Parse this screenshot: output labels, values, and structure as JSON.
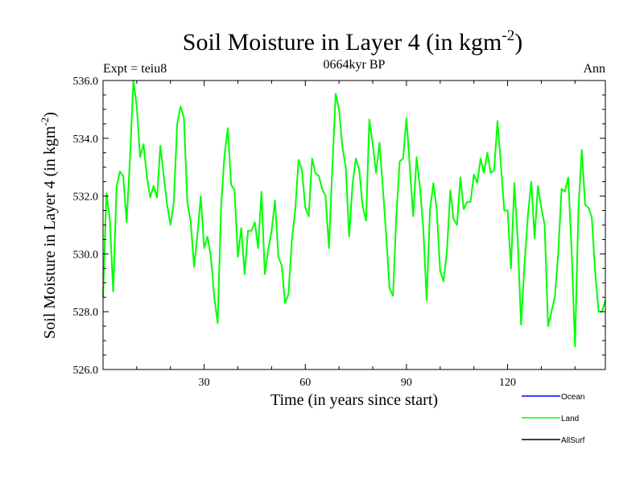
{
  "chart_data": {
    "type": "line",
    "title_main": "Soil Moisture in Layer 4 (in kgm",
    "title_exp": "-2",
    "title_close": ")",
    "subtitle_left": "Expt = teiu8",
    "subtitle_center": "0664kyr BP",
    "subtitle_right": "Ann",
    "xlabel": "Time (in years since start)",
    "ylabel_main": "Soil Moisture in Layer 4 (in kgm",
    "ylabel_exp": "-2",
    "ylabel_close": ")",
    "xlim": [
      0,
      149
    ],
    "ylim": [
      526.0,
      536.0
    ],
    "xticks": [
      30,
      60,
      90,
      120
    ],
    "yticks": [
      526,
      528,
      530,
      532,
      534,
      536
    ],
    "ytick_labels": [
      "526.0",
      "528.0",
      "530.0",
      "532.0",
      "534.0",
      "536.0"
    ],
    "legend": [
      {
        "name": "Ocean",
        "color": "#0000ff"
      },
      {
        "name": "Land",
        "color": "#00ff00"
      },
      {
        "name": "AllSurf",
        "color": "#000000"
      }
    ],
    "series": [
      {
        "name": "Land",
        "color": "#00ff00",
        "values": [
          528.5,
          532.1,
          531.2,
          528.7,
          532.3,
          532.85,
          532.7,
          531.1,
          533.3,
          536.0,
          535.1,
          533.35,
          533.8,
          532.7,
          531.95,
          532.35,
          531.95,
          533.75,
          532.7,
          531.7,
          531.0,
          531.8,
          534.5,
          535.1,
          534.7,
          531.8,
          531.1,
          529.55,
          530.7,
          532.0,
          530.2,
          530.6,
          529.9,
          528.5,
          527.6,
          531.6,
          533.4,
          534.35,
          532.4,
          532.2,
          529.9,
          530.9,
          529.3,
          530.8,
          530.8,
          531.1,
          530.2,
          532.15,
          529.3,
          530.15,
          530.8,
          531.85,
          529.9,
          529.6,
          528.3,
          528.6,
          530.45,
          531.5,
          533.25,
          532.9,
          531.6,
          531.3,
          533.3,
          532.8,
          532.7,
          532.25,
          532.0,
          530.2,
          532.95,
          535.55,
          535.0,
          533.7,
          533.0,
          530.6,
          532.4,
          533.3,
          532.9,
          531.65,
          531.15,
          534.65,
          533.8,
          532.8,
          533.85,
          532.3,
          530.6,
          528.8,
          528.55,
          531.3,
          533.2,
          533.3,
          534.7,
          533.0,
          531.3,
          533.35,
          532.3,
          530.85,
          528.4,
          531.55,
          532.45,
          531.5,
          529.4,
          529.05,
          530.1,
          532.2,
          531.2,
          531.0,
          532.65,
          531.55,
          531.8,
          531.8,
          532.75,
          532.45,
          533.3,
          532.8,
          533.5,
          532.8,
          532.9,
          534.6,
          533.1,
          531.5,
          531.5,
          529.5,
          532.45,
          530.5,
          527.55,
          529.6,
          531.3,
          532.5,
          530.55,
          532.35,
          531.6,
          531.0,
          527.5,
          528.0,
          528.5,
          530.0,
          532.25,
          532.15,
          532.65,
          530.1,
          526.8,
          531.5,
          533.6,
          531.7,
          531.6,
          531.25,
          529.35,
          528.0,
          528.0,
          528.4
        ]
      }
    ]
  }
}
